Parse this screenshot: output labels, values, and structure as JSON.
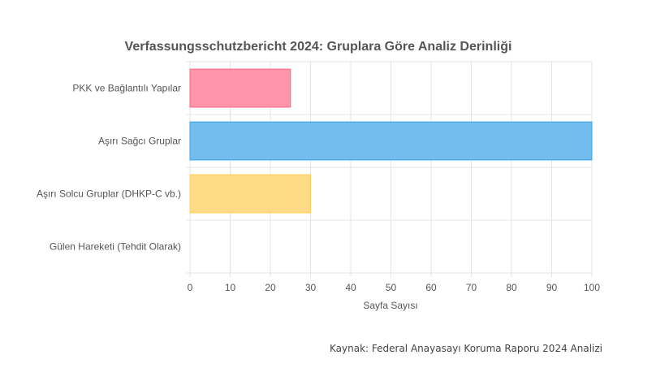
{
  "chart_data": {
    "type": "bar",
    "orientation": "horizontal",
    "title": "Verfassungsschutzbericht 2024: Gruplara Göre Analiz Derinliği",
    "categories": [
      "PKK ve Bağlantılı Yapılar",
      "Aşırı Sağcı Gruplar",
      "Aşırı Solcu Gruplar (DHKP-C vb.)",
      "Gülen Hareketi (Tehdit Olarak)"
    ],
    "values": [
      25,
      100,
      30,
      0
    ],
    "colors": [
      "#ff94aa",
      "#72bdee",
      "#ffdb87",
      "#c9cbcf"
    ],
    "border_colors": [
      "#ff6384",
      "#36a2eb",
      "#ffcd56",
      "#c9cbcf"
    ],
    "xlabel": "Sayfa Sayısı",
    "ylabel": "",
    "xlim": [
      0,
      100
    ],
    "x_ticks": [
      "0",
      "10",
      "20",
      "30",
      "40",
      "50",
      "60",
      "70",
      "80",
      "90",
      "100"
    ],
    "grid": true,
    "legend": "none"
  },
  "source_note": "Kaynak: Federal Anayasayı Koruma Raporu 2024 Analizi"
}
